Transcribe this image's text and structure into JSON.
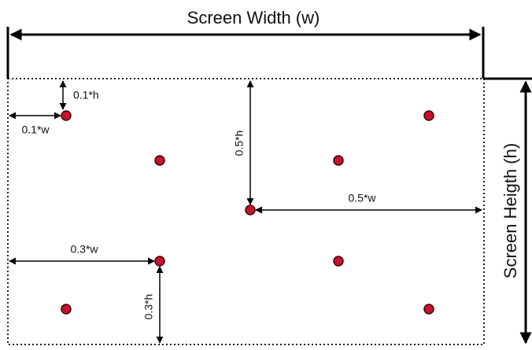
{
  "title": "Screen Width (w)",
  "side_label": "Screen Heigth (h)",
  "annotations": [
    "0.1*h",
    "0.1*w",
    "0.5*h",
    "0.5*w",
    "0.3*w",
    "0.3*h"
  ]
}
